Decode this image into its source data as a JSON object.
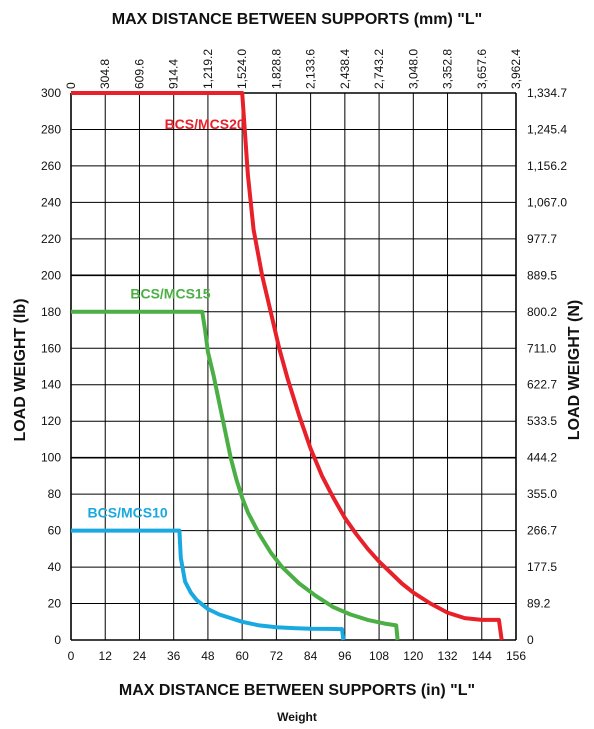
{
  "chart_data": {
    "type": "line",
    "title": "MAX DISTANCE BETWEEN SUPPORTS (mm) \"L\"",
    "xlabel": "MAX DISTANCE BETWEEN SUPPORTS (in) \"L\"",
    "ylabel": "LOAD WEIGHT (lb)",
    "y2label": "LOAD WEIGHT (N)",
    "footer": "Weight",
    "xlim": [
      0,
      156
    ],
    "ylim": [
      0,
      300
    ],
    "grid": true,
    "x_ticks": [
      "0",
      "12",
      "24",
      "36",
      "48",
      "60",
      "72",
      "84",
      "96",
      "108",
      "120",
      "132",
      "144",
      "156"
    ],
    "y_ticks": [
      "0",
      "20",
      "40",
      "60",
      "80",
      "100",
      "120",
      "140",
      "160",
      "180",
      "200",
      "220",
      "240",
      "260",
      "280",
      "300"
    ],
    "x_top_ticks": [
      "0",
      "304.8",
      "609.6",
      "914.4",
      "1,219.2",
      "1,524.0",
      "1,828.8",
      "2,133.6",
      "2,438.4",
      "2,743.2",
      "3,048.0",
      "3,352.8",
      "3,657.6",
      "3,962.4"
    ],
    "y_right_ticks": [
      "0",
      "89.2",
      "177.5",
      "266.7",
      "355.0",
      "444.2",
      "533.5",
      "622.7",
      "711.0",
      "800.2",
      "889.5",
      "977.7",
      "1,067.0",
      "1,156.2",
      "1,245.4",
      "1,334.7"
    ],
    "series": [
      {
        "name": "BCS/MCS20",
        "color": "#e8202a",
        "x": [
          0,
          60,
          62,
          64,
          67,
          70,
          73,
          76,
          80,
          84,
          88,
          92,
          96,
          100,
          104,
          108,
          112,
          116,
          120,
          126,
          132,
          138,
          144,
          150,
          151
        ],
        "y": [
          300,
          300,
          255,
          225,
          200,
          180,
          160,
          143,
          123,
          105,
          90,
          78,
          67,
          58,
          50,
          43,
          37,
          31,
          26,
          20,
          15,
          12,
          11,
          11,
          0
        ]
      },
      {
        "name": "BCS/MCS15",
        "color": "#4caf45",
        "x": [
          0,
          46,
          47,
          48,
          50,
          52,
          54,
          56,
          58,
          60,
          62,
          66,
          70,
          74,
          80,
          86,
          92,
          98,
          104,
          110,
          114,
          114.5
        ],
        "y": [
          180,
          180,
          170,
          158,
          145,
          130,
          115,
          100,
          88,
          78,
          70,
          58,
          48,
          40,
          31,
          24,
          18,
          14,
          11,
          9,
          8,
          0
        ]
      },
      {
        "name": "BCS/MCS10",
        "color": "#19a9e0",
        "x": [
          0,
          38,
          38.5,
          40,
          42,
          44,
          48,
          52,
          56,
          60,
          66,
          72,
          78,
          84,
          90,
          95,
          95.5
        ],
        "y": [
          60,
          60,
          45,
          32,
          26,
          22,
          17,
          14,
          12,
          10,
          8,
          7,
          6.5,
          6.2,
          6.1,
          6,
          0
        ]
      }
    ]
  }
}
